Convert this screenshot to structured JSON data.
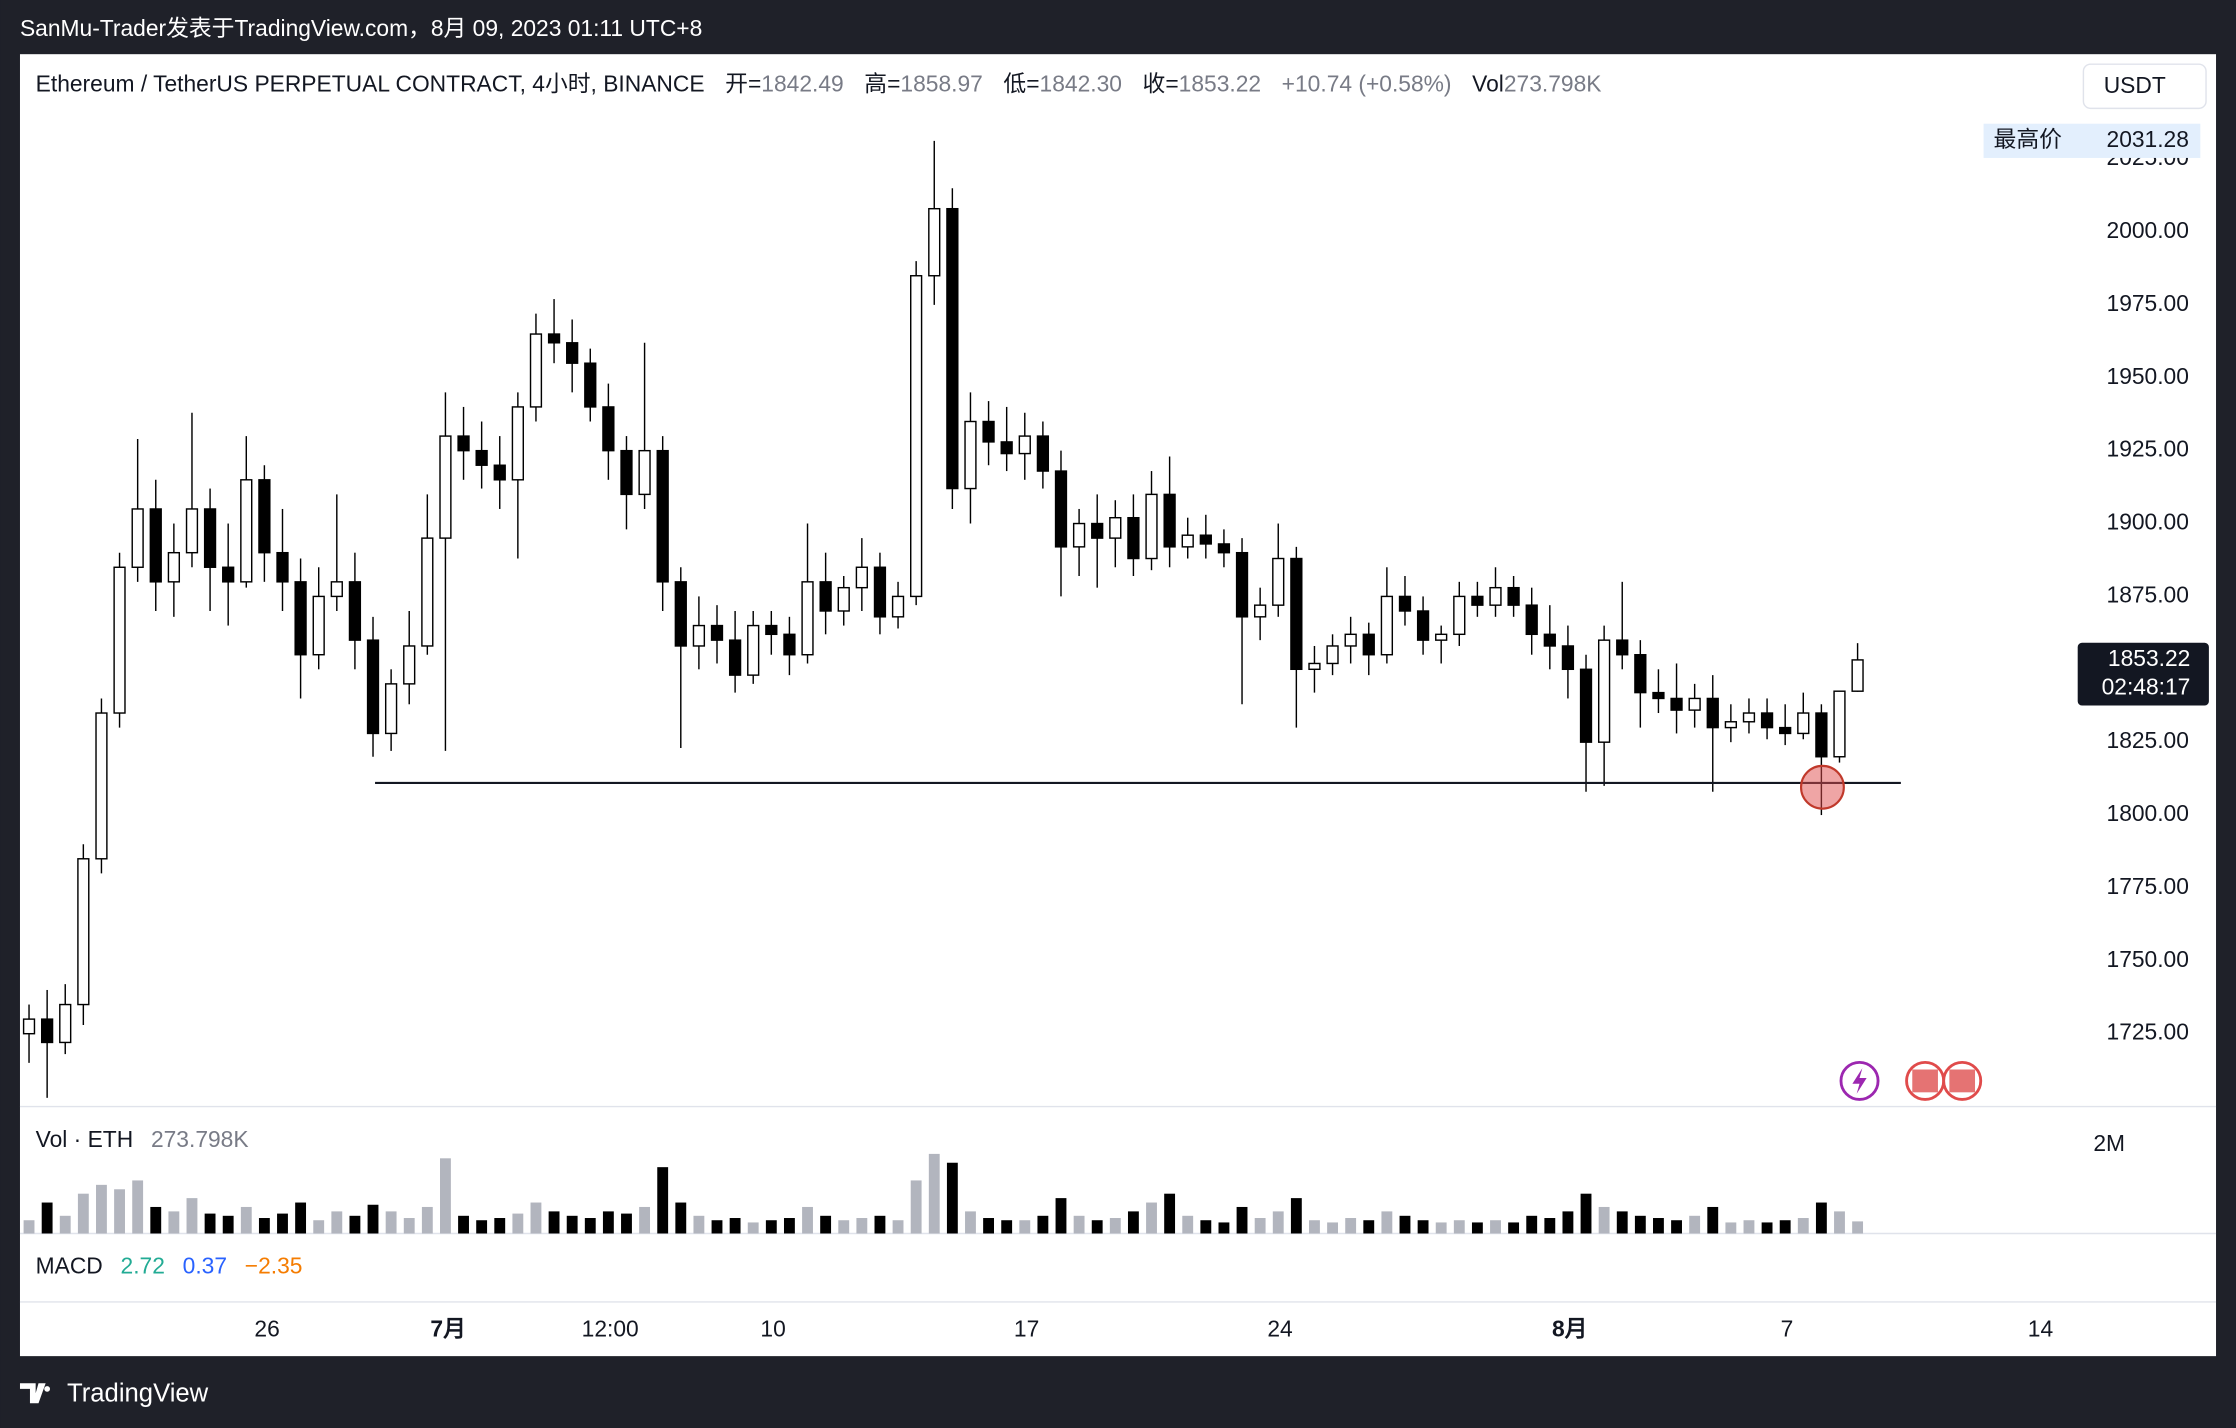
{
  "header": {
    "byline": "SanMu-Trader发表于TradingView.com，8月 09, 2023 01:11 UTC+8"
  },
  "chart_data": {
    "type": "candlestick",
    "title": "Ethereum / TetherUS PERPETUAL CONTRACT, 4小时, BINANCE",
    "ohlc_labels": [
      "开=",
      "高=",
      "低=",
      "收="
    ],
    "last_value_labels": [
      "1842.49",
      "1858.97",
      "1842.30",
      "1853.22"
    ],
    "change": "+10.74 (+0.58%)",
    "volume_label": "Vol",
    "volume_value_label": "273.798K",
    "currency": "USDT",
    "high_label": "最高价",
    "countdown": "02:48:17",
    "up_color": "#ffffff",
    "down_color": "#000000",
    "edge_color": "#000000",
    "ohlc": [
      [
        1725,
        1735,
        1715,
        1730
      ],
      [
        1730,
        1740,
        1703,
        1722
      ],
      [
        1722,
        1742,
        1718,
        1735
      ],
      [
        1735,
        1790,
        1728,
        1785
      ],
      [
        1785,
        1840,
        1780,
        1835
      ],
      [
        1835,
        1890,
        1830,
        1885
      ],
      [
        1885,
        1929,
        1880,
        1905
      ],
      [
        1905,
        1915,
        1870,
        1880
      ],
      [
        1880,
        1900,
        1868,
        1890
      ],
      [
        1890,
        1938,
        1885,
        1905
      ],
      [
        1905,
        1912,
        1870,
        1885
      ],
      [
        1885,
        1900,
        1865,
        1880
      ],
      [
        1880,
        1930,
        1878,
        1915
      ],
      [
        1915,
        1920,
        1880,
        1890
      ],
      [
        1890,
        1905,
        1870,
        1880
      ],
      [
        1880,
        1888,
        1840,
        1855
      ],
      [
        1855,
        1885,
        1850,
        1875
      ],
      [
        1875,
        1910,
        1870,
        1880
      ],
      [
        1880,
        1890,
        1850,
        1860
      ],
      [
        1860,
        1868,
        1820,
        1828
      ],
      [
        1828,
        1850,
        1822,
        1845
      ],
      [
        1845,
        1870,
        1838,
        1858
      ],
      [
        1858,
        1910,
        1855,
        1895
      ],
      [
        1895,
        1945,
        1822,
        1930
      ],
      [
        1930,
        1940,
        1915,
        1925
      ],
      [
        1925,
        1935,
        1912,
        1920
      ],
      [
        1920,
        1930,
        1905,
        1915
      ],
      [
        1915,
        1945,
        1888,
        1940
      ],
      [
        1940,
        1972,
        1935,
        1965
      ],
      [
        1965,
        1977,
        1955,
        1962
      ],
      [
        1962,
        1970,
        1945,
        1955
      ],
      [
        1955,
        1960,
        1935,
        1940
      ],
      [
        1940,
        1948,
        1915,
        1925
      ],
      [
        1925,
        1930,
        1898,
        1910
      ],
      [
        1910,
        1962,
        1905,
        1925
      ],
      [
        1925,
        1930,
        1870,
        1880
      ],
      [
        1880,
        1885,
        1823,
        1858
      ],
      [
        1858,
        1875,
        1850,
        1865
      ],
      [
        1865,
        1872,
        1852,
        1860
      ],
      [
        1860,
        1870,
        1842,
        1848
      ],
      [
        1848,
        1870,
        1845,
        1865
      ],
      [
        1865,
        1870,
        1855,
        1862
      ],
      [
        1862,
        1868,
        1848,
        1855
      ],
      [
        1855,
        1900,
        1852,
        1880
      ],
      [
        1880,
        1890,
        1862,
        1870
      ],
      [
        1870,
        1882,
        1865,
        1878
      ],
      [
        1878,
        1895,
        1870,
        1885
      ],
      [
        1885,
        1890,
        1862,
        1868
      ],
      [
        1868,
        1880,
        1864,
        1875
      ],
      [
        1875,
        1990,
        1872,
        1985
      ],
      [
        1985,
        2031.28,
        1975,
        2008
      ],
      [
        2008,
        2015,
        1905,
        1912
      ],
      [
        1912,
        1945,
        1900,
        1935
      ],
      [
        1935,
        1942,
        1920,
        1928
      ],
      [
        1928,
        1940,
        1918,
        1924
      ],
      [
        1924,
        1938,
        1915,
        1930
      ],
      [
        1930,
        1935,
        1912,
        1918
      ],
      [
        1918,
        1925,
        1875,
        1892
      ],
      [
        1892,
        1905,
        1882,
        1900
      ],
      [
        1900,
        1910,
        1878,
        1895
      ],
      [
        1895,
        1908,
        1885,
        1902
      ],
      [
        1902,
        1910,
        1882,
        1888
      ],
      [
        1888,
        1918,
        1884,
        1910
      ],
      [
        1910,
        1923,
        1885,
        1892
      ],
      [
        1892,
        1902,
        1888,
        1896
      ],
      [
        1896,
        1903,
        1888,
        1893
      ],
      [
        1893,
        1898,
        1885,
        1890
      ],
      [
        1890,
        1895,
        1838,
        1868
      ],
      [
        1868,
        1878,
        1860,
        1872
      ],
      [
        1872,
        1900,
        1868,
        1888
      ],
      [
        1888,
        1892,
        1830,
        1850
      ],
      [
        1850,
        1858,
        1842,
        1852
      ],
      [
        1852,
        1862,
        1848,
        1858
      ],
      [
        1858,
        1868,
        1852,
        1862
      ],
      [
        1862,
        1866,
        1848,
        1855
      ],
      [
        1855,
        1885,
        1852,
        1875
      ],
      [
        1875,
        1882,
        1865,
        1870
      ],
      [
        1870,
        1875,
        1855,
        1860
      ],
      [
        1860,
        1865,
        1852,
        1862
      ],
      [
        1862,
        1880,
        1858,
        1875
      ],
      [
        1875,
        1880,
        1868,
        1872
      ],
      [
        1872,
        1885,
        1868,
        1878
      ],
      [
        1878,
        1882,
        1868,
        1872
      ],
      [
        1872,
        1878,
        1855,
        1862
      ],
      [
        1862,
        1872,
        1850,
        1858
      ],
      [
        1858,
        1865,
        1840,
        1850
      ],
      [
        1850,
        1855,
        1808,
        1825
      ],
      [
        1825,
        1865,
        1810,
        1860
      ],
      [
        1860,
        1880,
        1850,
        1855
      ],
      [
        1855,
        1860,
        1830,
        1842
      ],
      [
        1842,
        1850,
        1835,
        1840
      ],
      [
        1840,
        1852,
        1828,
        1836
      ],
      [
        1836,
        1845,
        1830,
        1840
      ],
      [
        1840,
        1848,
        1808,
        1830
      ],
      [
        1830,
        1838,
        1825,
        1832
      ],
      [
        1832,
        1840,
        1828,
        1835
      ],
      [
        1835,
        1840,
        1826,
        1830
      ],
      [
        1830,
        1838,
        1824,
        1828
      ],
      [
        1828,
        1842,
        1826,
        1835
      ],
      [
        1835,
        1838,
        1800,
        1820
      ],
      [
        1820,
        1842,
        1818,
        1842.49
      ],
      [
        1842.49,
        1858.97,
        1842.3,
        1853.22
      ]
    ],
    "xlim": [
      -0.5,
      113
    ],
    "xticks": [
      {
        "value": 13.15,
        "label": "26"
      },
      {
        "value": 23.15,
        "label": "7月"
      },
      {
        "value": 32.1,
        "label": "12:00"
      },
      {
        "value": 41.1,
        "label": "10"
      },
      {
        "value": 55.1,
        "label": "17"
      },
      {
        "value": 69.1,
        "label": "24"
      },
      {
        "value": 85.1,
        "label": "8月"
      },
      {
        "value": 97.1,
        "label": "7"
      },
      {
        "value": 111.1,
        "label": "14"
      }
    ],
    "ylim": [
      1700,
      2061
    ],
    "yticks": [
      {
        "value": 1725,
        "label": "1725.00"
      },
      {
        "value": 1750,
        "label": "1750.00"
      },
      {
        "value": 1775,
        "label": "1775.00"
      },
      {
        "value": 1800,
        "label": "1800.00"
      },
      {
        "value": 1825,
        "label": "1825.00"
      },
      {
        "value": 1850,
        "label": "1850.00"
      },
      {
        "value": 1875,
        "label": "1875.00"
      },
      {
        "value": 1900,
        "label": "1900.00"
      },
      {
        "value": 1925,
        "label": "1925.00"
      },
      {
        "value": 1950,
        "label": "1950.00"
      },
      {
        "value": 1975,
        "label": "1975.00"
      },
      {
        "value": 2000,
        "label": "2000.00"
      },
      {
        "value": 2025,
        "label": "2025.00"
      }
    ],
    "support_price": 1811,
    "volume_pane": {
      "title": "Vol · ETH",
      "up_color": "#b2b5be",
      "down_color": "#000000",
      "ylim": [
        0,
        2870000
      ],
      "yticks": [
        {
          "value": 2000000,
          "label": "2M"
        }
      ],
      "values": [
        300000,
        700000,
        400000,
        900000,
        1100000,
        1000000,
        1200000,
        600000,
        500000,
        800000,
        450000,
        400000,
        600000,
        350000,
        450000,
        700000,
        300000,
        500000,
        400000,
        650000,
        500000,
        350000,
        600000,
        1700000,
        400000,
        300000,
        350000,
        450000,
        700000,
        500000,
        400000,
        350000,
        500000,
        450000,
        600000,
        1500000,
        700000,
        400000,
        300000,
        350000,
        250000,
        300000,
        350000,
        600000,
        400000,
        300000,
        350000,
        400000,
        300000,
        1200000,
        1800000,
        1600000,
        500000,
        350000,
        300000,
        300000,
        400000,
        800000,
        400000,
        300000,
        350000,
        500000,
        700000,
        900000,
        400000,
        300000,
        250000,
        600000,
        350000,
        500000,
        800000,
        300000,
        250000,
        350000,
        300000,
        500000,
        400000,
        300000,
        250000,
        300000,
        250000,
        300000,
        250000,
        400000,
        350000,
        500000,
        900000,
        600000,
        500000,
        400000,
        350000,
        300000,
        400000,
        600000,
        250000,
        300000,
        250000,
        300000,
        350000,
        700000,
        500000,
        273798
      ]
    },
    "macd": {
      "name": "MACD",
      "values": [
        2.72,
        0.37,
        -2.35
      ],
      "value_labels": [
        "2.72",
        "0.37",
        "−2.35"
      ],
      "colors": [
        "#22ab94",
        "#2962ff",
        "#f57c00"
      ]
    }
  },
  "footer": {
    "brand": "TradingView"
  }
}
